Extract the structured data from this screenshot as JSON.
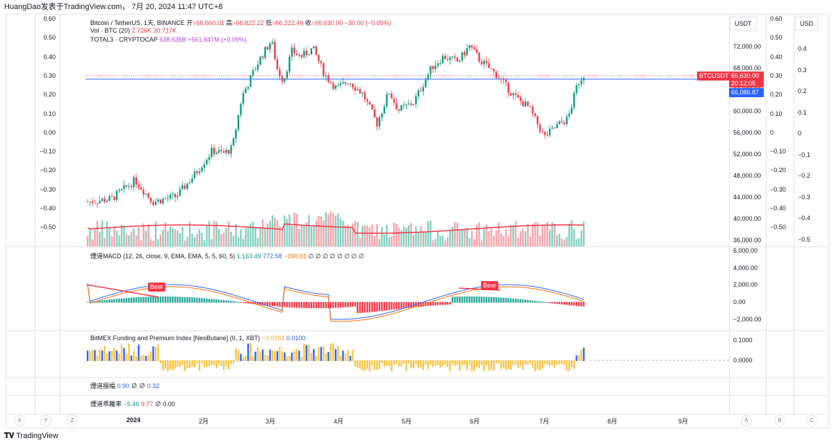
{
  "header": {
    "text": "HuangDao发表于TradingView.com， 7月 20, 2024 11:47 UTC+8"
  },
  "main_legend": {
    "symbol": "Bitcoin / TetherUS, 1天, BINANCE",
    "open_label": "开",
    "open": "=66,660.01",
    "high_label": "高",
    "high": "=66,822.22",
    "low_label": "低",
    "low": "=66,222.46",
    "close_label": "收",
    "close": "=66,630.00",
    "change": "−30.00 (−0.05%)",
    "vol_label": "Vol · BTC (20)",
    "vol1": "2.726K",
    "vol2": "30.717K",
    "total3_label": "TOTAL3 · CRYPTOCAP",
    "total3_val": "638.635B",
    "total3_chg": "+561.947M (+0.09%)"
  },
  "macd_legend": {
    "label": "煙道MACD (12, 26, close, 9, EMA, EMA, 5, 5, 60, 5)",
    "v1": "1,163.49",
    "v2": "772.58",
    "v3": "−390.91",
    "rest": "∅ ∅ ∅ ∅ ∅ ∅ ∅ ∅"
  },
  "funding_legend": {
    "label": "BitMEX Funding and Premium Index [NeoButane] (0, 1, XBT)",
    "v1": "−0.0153",
    "v2": "0.0100"
  },
  "amp_legend": {
    "label": "煙道振幅",
    "v1": "0.90",
    "rest": "∅ ∅",
    "v2": "0.32"
  },
  "ratio_legend": {
    "label": "煙道乖離率",
    "v1": "−5.46",
    "v2": "9.77",
    "rest": "∅",
    "v3": "0.00"
  },
  "left_axis": [
    "0.60",
    "0.50",
    "0.40",
    "0.30",
    "0.20",
    "0.10",
    "0.00",
    "−0.10",
    "−0.20",
    "−0.30",
    "−0.40",
    "−0.50"
  ],
  "price_axis": [
    "72,000.00",
    "68,000.00",
    "64,000.00",
    "60,000.00",
    "56,000.00",
    "52,000.00",
    "48,000.00",
    "44,000.00",
    "40,000.00",
    "36,000.00"
  ],
  "axis2": [
    "0.60",
    "0.50",
    "0.40",
    "0.30",
    "0.20",
    "0.10",
    "0",
    "−0.10",
    "−0.20",
    "−0.30",
    "−0.40",
    "−0.50"
  ],
  "axis3": [
    "0.4",
    "0.3",
    "0.2",
    "0.1",
    "0",
    "−0.1",
    "−0.2",
    "−0.3",
    "−0.4",
    "−0.5"
  ],
  "macd_axis": [
    "6,000.00",
    "4,000.00",
    "2,000.00",
    "0.00",
    "−2,000.00"
  ],
  "funding_axis": [
    "0.1000",
    "0.0000"
  ],
  "unit_usdt": "USDT",
  "unit_usd": "USD",
  "tags": {
    "symbol": "BTCUSDT",
    "price": "66,630.00",
    "countdown": "20:12:05",
    "line": "66,086.87"
  },
  "bear_labels": [
    "Bear",
    "Bear"
  ],
  "dates": [
    "2024",
    "2月",
    "3月",
    "4月",
    "5月",
    "6月",
    "7月",
    "8月",
    "9月"
  ],
  "bottom_buttons": [
    "X",
    "Y",
    "Z",
    "A",
    "B",
    "C"
  ],
  "footer": "TradingView",
  "colors": {
    "up": "#089981",
    "down": "#f23645",
    "macd": "#2962ff",
    "signal": "#ff6d00",
    "funding": "#f7c343",
    "premium": "#2962ff"
  }
}
